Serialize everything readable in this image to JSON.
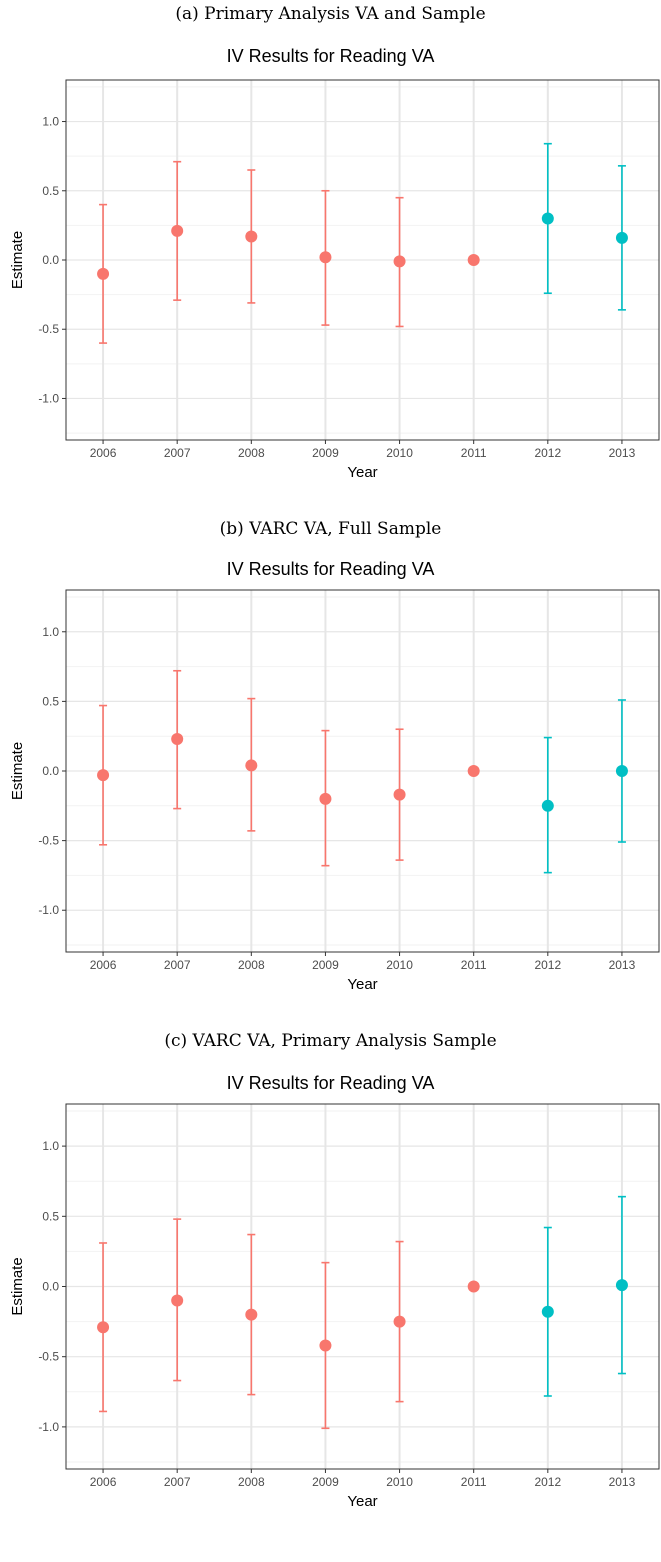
{
  "colors": {
    "pre": "#F8766D",
    "post": "#00BFC4",
    "grid_major": "#e6e6e6",
    "grid_minor": "#f2f2f2",
    "panel_border": "#333333"
  },
  "panels": [
    {
      "caption": "(a) Primary Analysis VA and Sample"
    },
    {
      "caption": "(b) VARC VA, Full Sample"
    },
    {
      "caption": "(c) VARC VA, Primary Analysis Sample"
    }
  ],
  "chart_data": [
    {
      "type": "scatter",
      "title": "IV Results for Reading VA",
      "xlabel": "Year",
      "ylabel": "Estimate",
      "x_categories": [
        "2006",
        "2007",
        "2008",
        "2009",
        "2010",
        "2011",
        "2012",
        "2013"
      ],
      "ylim": [
        -1.3,
        1.3
      ],
      "yticks": [
        "1.0",
        "0.5",
        "0.0",
        "-0.5",
        "-1.0"
      ],
      "grid": true,
      "points": [
        {
          "x": "2006",
          "y": -0.1,
          "lo": -0.6,
          "hi": 0.4,
          "group": "pre"
        },
        {
          "x": "2007",
          "y": 0.21,
          "lo": -0.29,
          "hi": 0.71,
          "group": "pre"
        },
        {
          "x": "2008",
          "y": 0.17,
          "lo": -0.31,
          "hi": 0.65,
          "group": "pre"
        },
        {
          "x": "2009",
          "y": 0.02,
          "lo": -0.47,
          "hi": 0.5,
          "group": "pre"
        },
        {
          "x": "2010",
          "y": -0.01,
          "lo": -0.48,
          "hi": 0.45,
          "group": "pre"
        },
        {
          "x": "2011",
          "y": 0.0,
          "lo": 0.0,
          "hi": 0.0,
          "group": "pre"
        },
        {
          "x": "2012",
          "y": 0.3,
          "lo": -0.24,
          "hi": 0.84,
          "group": "post"
        },
        {
          "x": "2013",
          "y": 0.16,
          "lo": -0.36,
          "hi": 0.68,
          "group": "post"
        }
      ]
    },
    {
      "type": "scatter",
      "title": "IV Results for Reading VA",
      "xlabel": "Year",
      "ylabel": "Estimate",
      "x_categories": [
        "2006",
        "2007",
        "2008",
        "2009",
        "2010",
        "2011",
        "2012",
        "2013"
      ],
      "ylim": [
        -1.3,
        1.3
      ],
      "yticks": [
        "1.0",
        "0.5",
        "0.0",
        "-0.5",
        "-1.0"
      ],
      "grid": true,
      "points": [
        {
          "x": "2006",
          "y": -0.03,
          "lo": -0.53,
          "hi": 0.47,
          "group": "pre"
        },
        {
          "x": "2007",
          "y": 0.23,
          "lo": -0.27,
          "hi": 0.72,
          "group": "pre"
        },
        {
          "x": "2008",
          "y": 0.04,
          "lo": -0.43,
          "hi": 0.52,
          "group": "pre"
        },
        {
          "x": "2009",
          "y": -0.2,
          "lo": -0.68,
          "hi": 0.29,
          "group": "pre"
        },
        {
          "x": "2010",
          "y": -0.17,
          "lo": -0.64,
          "hi": 0.3,
          "group": "pre"
        },
        {
          "x": "2011",
          "y": 0.0,
          "lo": 0.0,
          "hi": 0.0,
          "group": "pre"
        },
        {
          "x": "2012",
          "y": -0.25,
          "lo": -0.73,
          "hi": 0.24,
          "group": "post"
        },
        {
          "x": "2013",
          "y": 0.0,
          "lo": -0.51,
          "hi": 0.51,
          "group": "post"
        }
      ]
    },
    {
      "type": "scatter",
      "title": "IV Results for Reading VA",
      "xlabel": "Year",
      "ylabel": "Estimate",
      "x_categories": [
        "2006",
        "2007",
        "2008",
        "2009",
        "2010",
        "2011",
        "2012",
        "2013"
      ],
      "ylim": [
        -1.3,
        1.3
      ],
      "yticks": [
        "1.0",
        "0.5",
        "0.0",
        "-0.5",
        "-1.0"
      ],
      "grid": true,
      "points": [
        {
          "x": "2006",
          "y": -0.29,
          "lo": -0.89,
          "hi": 0.31,
          "group": "pre"
        },
        {
          "x": "2007",
          "y": -0.1,
          "lo": -0.67,
          "hi": 0.48,
          "group": "pre"
        },
        {
          "x": "2008",
          "y": -0.2,
          "lo": -0.77,
          "hi": 0.37,
          "group": "pre"
        },
        {
          "x": "2009",
          "y": -0.42,
          "lo": -1.01,
          "hi": 0.17,
          "group": "pre"
        },
        {
          "x": "2010",
          "y": -0.25,
          "lo": -0.82,
          "hi": 0.32,
          "group": "pre"
        },
        {
          "x": "2011",
          "y": 0.0,
          "lo": 0.0,
          "hi": 0.0,
          "group": "pre"
        },
        {
          "x": "2012",
          "y": -0.18,
          "lo": -0.78,
          "hi": 0.42,
          "group": "post"
        },
        {
          "x": "2013",
          "y": 0.01,
          "lo": -0.62,
          "hi": 0.64,
          "group": "post"
        }
      ]
    }
  ]
}
